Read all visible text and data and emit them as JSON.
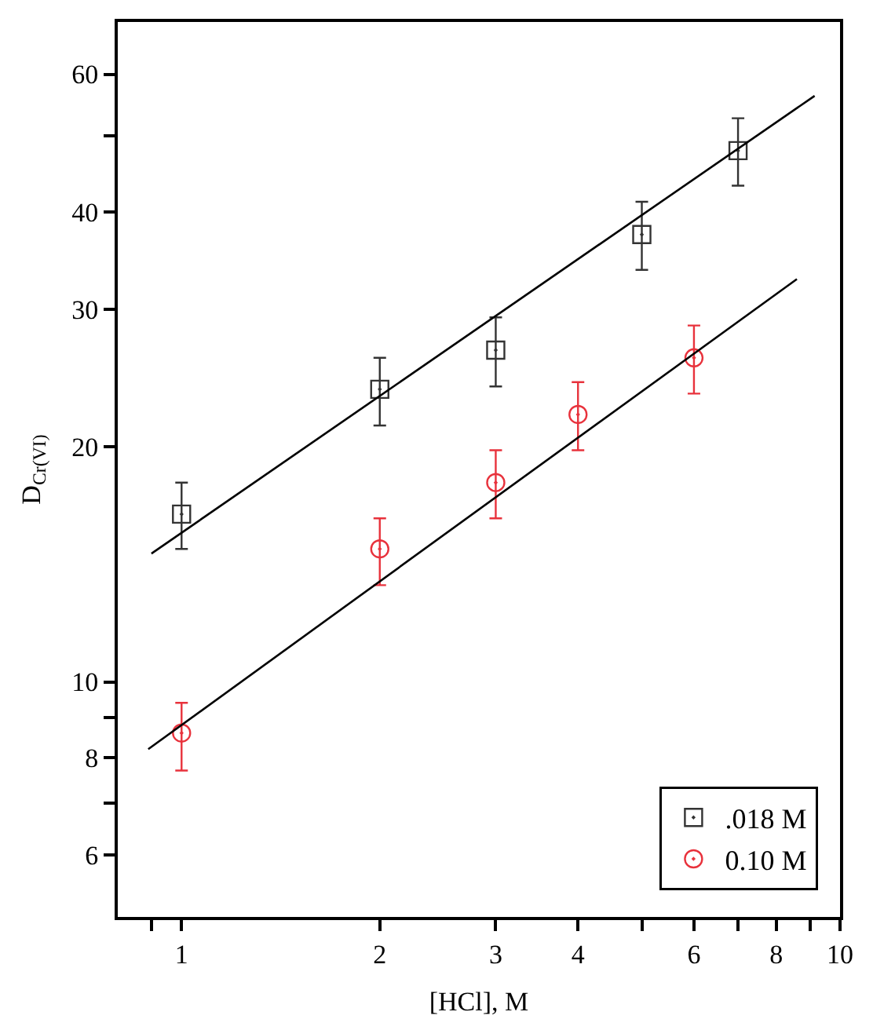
{
  "chart_data": {
    "type": "scatter",
    "xlabel": "[HCl], M",
    "ylabel": "D$_{Cr(VI)}$",
    "log": "xy",
    "legend": "bottom right",
    "xlim": [
      0.8,
      10
    ],
    "xticks": [
      {
        "value": 0.9,
        "label": null
      },
      1,
      2,
      3,
      4,
      {
        "value": 5,
        "label": null
      },
      6,
      {
        "value": 7,
        "label": null
      },
      8,
      {
        "value": 9,
        "label": null
      },
      10
    ],
    "ylim": [
      5,
      70
    ],
    "yticks": [
      6,
      {
        "value": 7,
        "label": null
      },
      8,
      {
        "value": 9,
        "label": null
      },
      10,
      20,
      30,
      40,
      {
        "value": 50,
        "label": null
      },
      60
    ],
    "series": [
      {
        "name": ".018 M",
        "color": "#333333",
        "marker": "square",
        "x": [
          1,
          2,
          3,
          5,
          7
        ],
        "values": [
          16.4,
          23.7,
          26.6,
          37.4,
          47.9
        ],
        "errors": [
          [
            14.8,
            18.0
          ],
          [
            21.3,
            26.0
          ],
          [
            23.9,
            29.3
          ],
          [
            33.7,
            41.2
          ],
          [
            43.2,
            52.7
          ]
        ]
      },
      {
        "name": "0.10 M",
        "color": "#e8323c",
        "marker": "circle",
        "x": [
          1,
          2,
          3,
          4,
          6
        ],
        "values": [
          8.6,
          14.8,
          18.0,
          22.0,
          26.0
        ],
        "errors": [
          [
            7.7,
            9.4
          ],
          [
            13.3,
            16.2
          ],
          [
            16.2,
            19.8
          ],
          [
            19.8,
            24.2
          ],
          [
            23.4,
            28.6
          ]
        ]
      },
      {
        "type": "line",
        "color": "#000000",
        "marker": "none",
        "x": [
          0.9,
          9.15
        ],
        "values": [
          14.6,
          56.3
        ]
      },
      {
        "type": "line",
        "color": "#000000",
        "marker": "none",
        "x": [
          0.89,
          8.6
        ],
        "values": [
          8.2,
          32.8
        ]
      }
    ]
  }
}
